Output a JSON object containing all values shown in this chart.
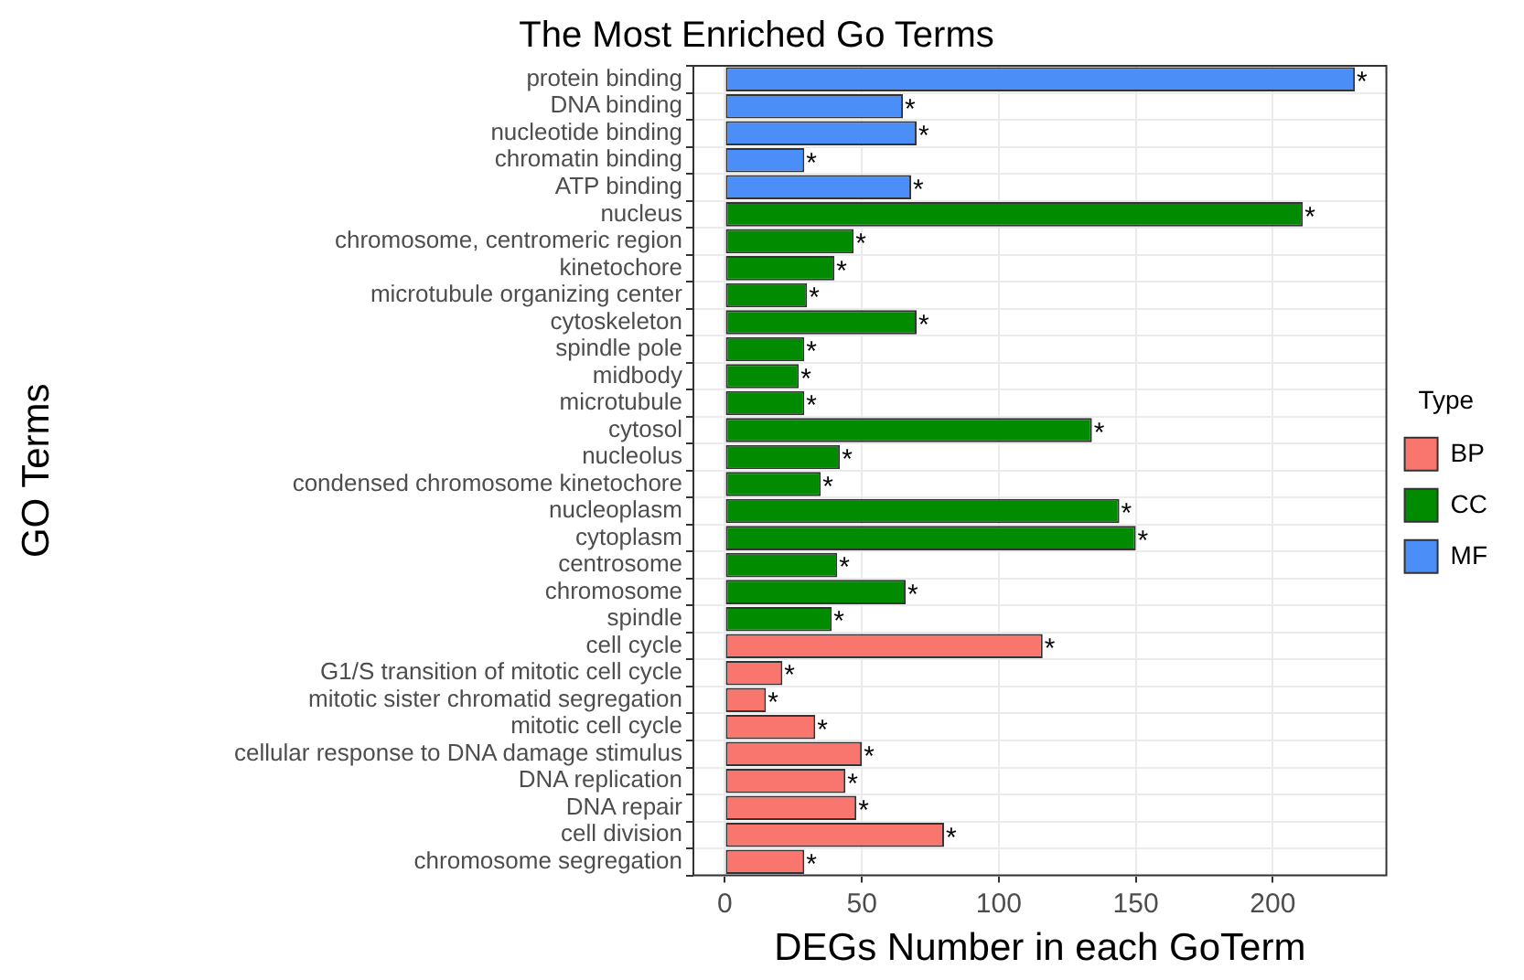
{
  "chart_data": {
    "type": "bar",
    "orientation": "horizontal",
    "title": "The Most Enriched Go Terms",
    "xlabel": "DEGs Number in each GoTerm",
    "ylabel": "GO Terms",
    "legend_title": "Type",
    "legend": "right",
    "grid": true,
    "categories": [
      "protein binding",
      "DNA binding",
      "nucleotide binding",
      "chromatin binding",
      "ATP binding",
      "nucleus",
      "chromosome, centromeric region",
      "kinetochore",
      "microtubule organizing center",
      "cytoskeleton",
      "spindle pole",
      "midbody",
      "microtubule",
      "cytosol",
      "nucleolus",
      "condensed chromosome kinetochore",
      "nucleoplasm",
      "cytoplasm",
      "centrosome",
      "chromosome",
      "spindle",
      "cell cycle",
      "G1/S transition of mitotic cell cycle",
      "mitotic sister chromatid segregation",
      "mitotic cell cycle",
      "cellular response to DNA damage stimulus",
      "DNA replication",
      "DNA repair",
      "cell division",
      "chromosome segregation"
    ],
    "series": [
      {
        "name": "BP",
        "color": "#f8766d",
        "values": [
          null,
          null,
          null,
          null,
          null,
          null,
          null,
          null,
          null,
          null,
          null,
          null,
          null,
          null,
          null,
          null,
          null,
          null,
          null,
          null,
          null,
          116,
          21,
          15,
          33,
          50,
          44,
          48,
          80,
          29
        ],
        "value_labels": [
          null,
          null,
          null,
          null,
          null,
          null,
          null,
          null,
          null,
          null,
          null,
          null,
          null,
          null,
          null,
          null,
          null,
          null,
          null,
          null,
          null,
          "*",
          "*",
          "*",
          "*",
          "*",
          "*",
          "*",
          "*",
          "*"
        ]
      },
      {
        "name": "CC",
        "color": "#008b00",
        "values": [
          null,
          null,
          null,
          null,
          null,
          211,
          47,
          40,
          30,
          70,
          29,
          27,
          29,
          134,
          42,
          35,
          144,
          150,
          41,
          66,
          39,
          null,
          null,
          null,
          null,
          null,
          null,
          null,
          null,
          null
        ],
        "value_labels": [
          null,
          null,
          null,
          null,
          null,
          "*",
          "*",
          "*",
          "*",
          "*",
          "*",
          "*",
          "*",
          "*",
          "*",
          "*",
          "*",
          "*",
          "*",
          "*",
          "*",
          null,
          null,
          null,
          null,
          null,
          null,
          null,
          null,
          null
        ]
      },
      {
        "name": "MF",
        "color": "#4b8ef8",
        "values": [
          230,
          65,
          70,
          29,
          68,
          null,
          null,
          null,
          null,
          null,
          null,
          null,
          null,
          null,
          null,
          null,
          null,
          null,
          null,
          null,
          null,
          null,
          null,
          null,
          null,
          null,
          null,
          null,
          null,
          null
        ],
        "value_labels": [
          "*",
          "*",
          "*",
          "*",
          "*",
          null,
          null,
          null,
          null,
          null,
          null,
          null,
          null,
          null,
          null,
          null,
          null,
          null,
          null,
          null,
          null,
          null,
          null,
          null,
          null,
          null,
          null,
          null,
          null,
          null
        ]
      }
    ],
    "xlim": [
      -11.5,
      241.5
    ],
    "xticks": [
      0,
      50,
      100,
      150,
      200
    ]
  }
}
